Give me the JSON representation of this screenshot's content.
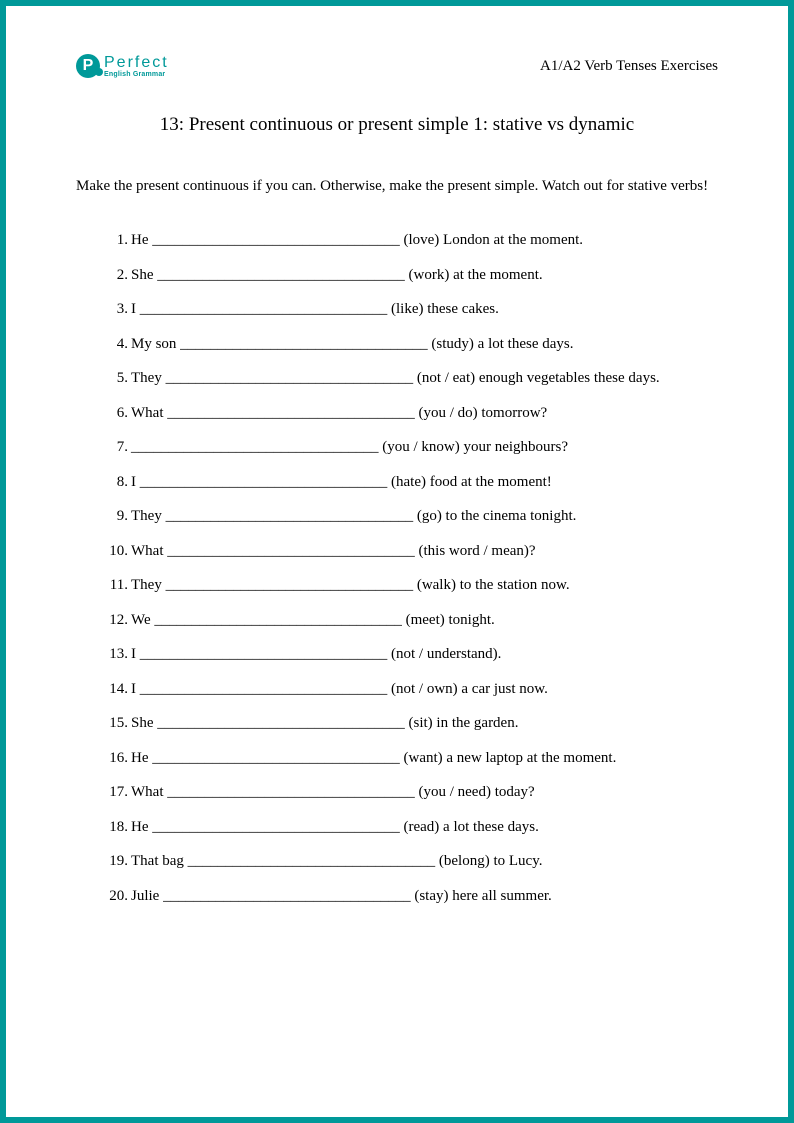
{
  "logo": {
    "badge_letter": "P",
    "main": "Perfect",
    "sub": "English Grammar"
  },
  "header_right": "A1/A2 Verb Tenses Exercises",
  "title": "13: Present continuous or present simple 1: stative vs dynamic",
  "instructions": "Make the present continuous if you can. Otherwise, make the present simple. Watch out for stative verbs!",
  "questions": [
    "He _________________________________ (love) London at the moment.",
    "She _________________________________ (work) at the moment.",
    "I _________________________________ (like) these cakes.",
    "My son _________________________________ (study) a lot these days.",
    "They _________________________________ (not / eat) enough vegetables these days.",
    "What _________________________________ (you / do) tomorrow?",
    "_________________________________ (you / know) your neighbours?",
    "I _________________________________ (hate) food at the moment!",
    "They _________________________________ (go) to the cinema tonight.",
    "What _________________________________ (this word / mean)?",
    "They _________________________________ (walk) to the station now.",
    "We _________________________________ (meet) tonight.",
    "I _________________________________ (not / understand).",
    "I _________________________________ (not / own) a car just now.",
    "She _________________________________ (sit) in the garden.",
    "He _________________________________ (want) a new laptop at the moment.",
    "What _________________________________ (you / need) today?",
    "He _________________________________ (read) a lot these days.",
    "That bag _________________________________ (belong) to Lucy.",
    "Julie _________________________________ (stay) here all summer."
  ],
  "colors": {
    "border": "#009999",
    "logo": "#009999",
    "text": "#000000",
    "background": "#ffffff"
  }
}
